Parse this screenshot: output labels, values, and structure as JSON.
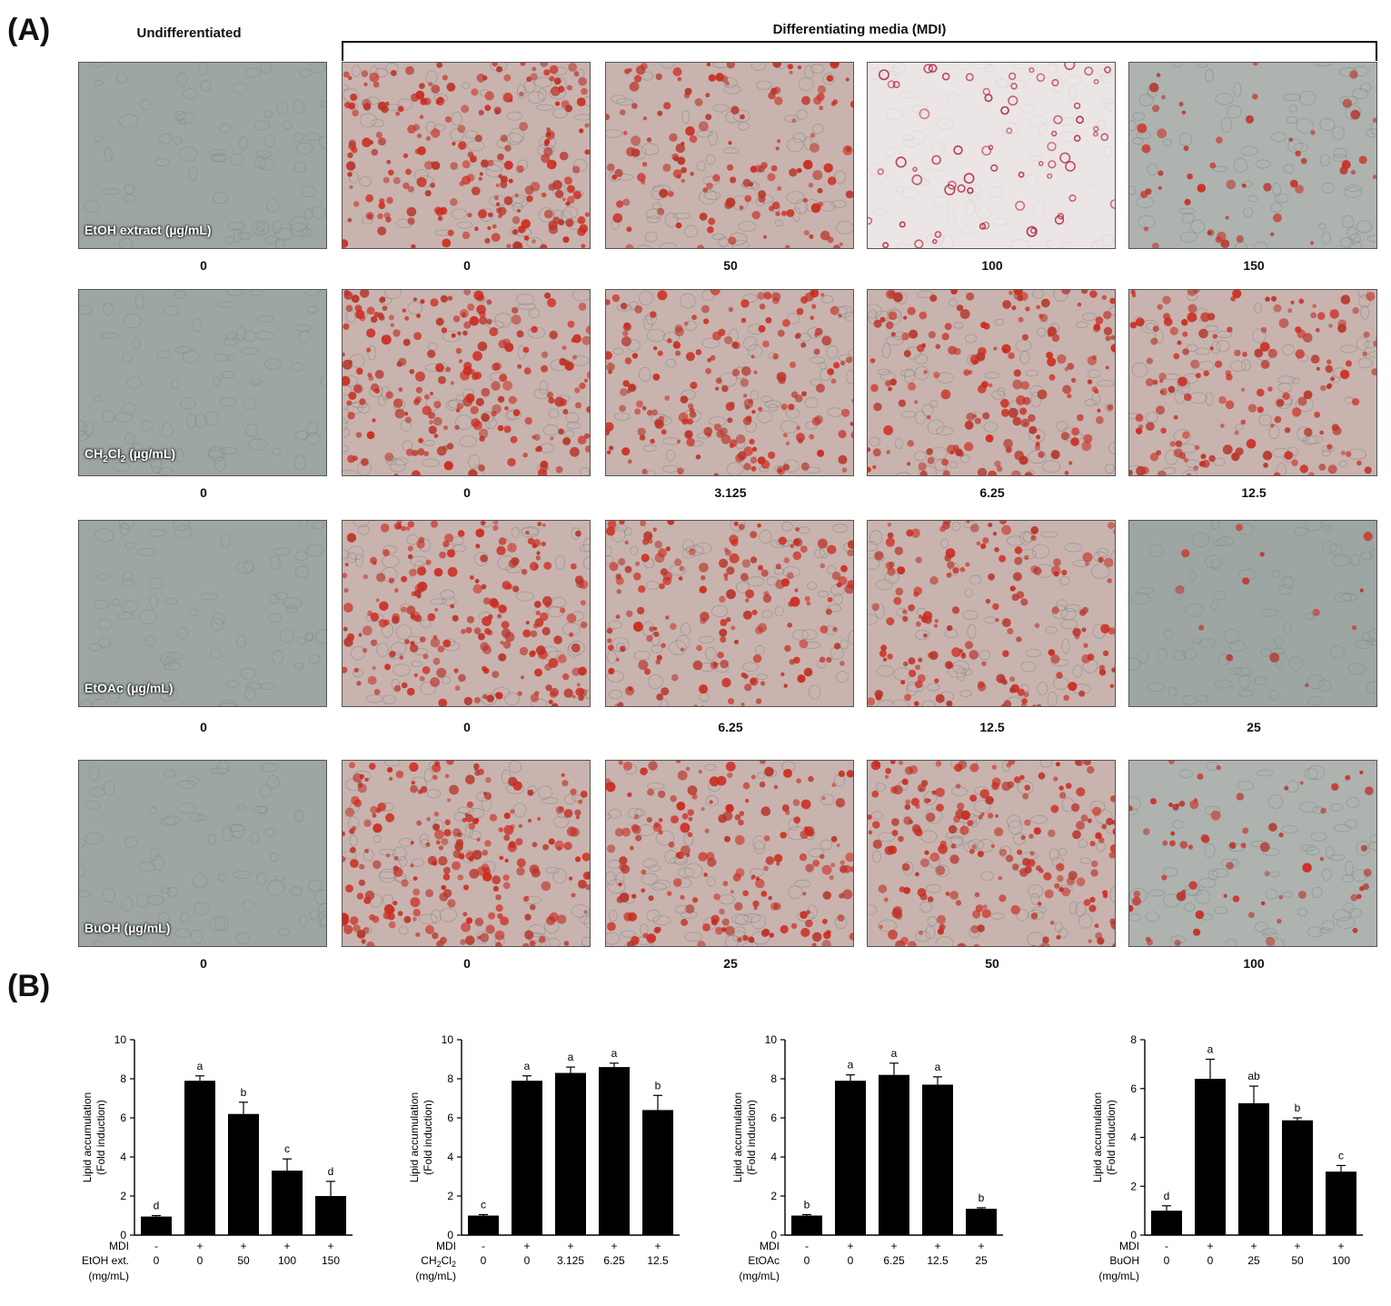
{
  "panel_a": {
    "label": "(A)",
    "header_undiff": "Undifferentiated",
    "header_mdi": "Differentiating media (MDI)",
    "rows": [
      {
        "caption": "EtOH extract (µg/mL)",
        "doses": [
          "0",
          "0",
          "50",
          "100",
          "150"
        ],
        "stain": [
          0,
          0.85,
          0.55,
          0.6,
          0.2
        ],
        "sparse": [
          false,
          false,
          false,
          true,
          false
        ]
      },
      {
        "caption": "CH2Cl2 (µg/mL)",
        "caption_parts": [
          "CH",
          "2",
          "Cl",
          "2",
          " (µg/mL)"
        ],
        "doses": [
          "0",
          "0",
          "3.125",
          "6.25",
          "12.5"
        ],
        "stain": [
          0,
          0.8,
          0.7,
          0.65,
          0.6
        ],
        "sparse": [
          false,
          false,
          false,
          false,
          false
        ]
      },
      {
        "caption": "EtOAc (µg/mL)",
        "doses": [
          "0",
          "0",
          "6.25",
          "12.5",
          "25"
        ],
        "stain": [
          0,
          0.8,
          0.65,
          0.6,
          0.05
        ],
        "sparse": [
          false,
          false,
          false,
          false,
          false
        ]
      },
      {
        "caption": "BuOH (µg/mL)",
        "doses": [
          "0",
          "0",
          "25",
          "50",
          "100"
        ],
        "stain": [
          0,
          0.85,
          0.7,
          0.75,
          0.25
        ],
        "sparse": [
          false,
          false,
          false,
          false,
          false
        ]
      }
    ]
  },
  "panel_b": {
    "label": "(B)"
  },
  "chart_data": [
    {
      "type": "bar",
      "ylabel": "Lipid accumulation (Fold induction)",
      "ylabel_lines": [
        "Lipid accumulation",
        "(Fold induction)"
      ],
      "ylim": [
        0,
        10
      ],
      "yticks": [
        0,
        2,
        4,
        6,
        8,
        10
      ],
      "row1_label": "MDI",
      "mdi": [
        "-",
        "+",
        "+",
        "+",
        "+"
      ],
      "row2_label": "EtOH ext.",
      "unit_label": "(mg/mL)",
      "categories": [
        "0",
        "0",
        "50",
        "100",
        "150"
      ],
      "values": [
        0.95,
        7.9,
        6.2,
        3.3,
        2.0
      ],
      "errors": [
        0.05,
        0.25,
        0.6,
        0.6,
        0.75
      ],
      "letters": [
        "d",
        "a",
        "b",
        "c",
        "d"
      ]
    },
    {
      "type": "bar",
      "ylabel": "Lipid accumulation (Fold induction)",
      "ylabel_lines": [
        "Lipid accumulation",
        "(Fold induction)"
      ],
      "ylim": [
        0,
        10
      ],
      "yticks": [
        0,
        2,
        4,
        6,
        8,
        10
      ],
      "row1_label": "MDI",
      "mdi": [
        "-",
        "+",
        "+",
        "+",
        "+"
      ],
      "row2_label": "CH2Cl2",
      "row2_parts": [
        "CH",
        "2",
        "Cl",
        "2"
      ],
      "unit_label": "(mg/mL)",
      "categories": [
        "0",
        "0",
        "3.125",
        "6.25",
        "12.5"
      ],
      "values": [
        1.0,
        7.9,
        8.3,
        8.6,
        6.4
      ],
      "errors": [
        0.05,
        0.25,
        0.3,
        0.2,
        0.75
      ],
      "letters": [
        "c",
        "a",
        "a",
        "a",
        "b"
      ]
    },
    {
      "type": "bar",
      "ylabel": "Lipid accumulation (Fold induction)",
      "ylabel_lines": [
        "Lipid accumulation",
        "(Fold induction)"
      ],
      "ylim": [
        0,
        10
      ],
      "yticks": [
        0,
        2,
        4,
        6,
        8,
        10
      ],
      "row1_label": "MDI",
      "mdi": [
        "-",
        "+",
        "+",
        "+",
        "+"
      ],
      "row2_label": "EtOAc",
      "unit_label": "(mg/mL)",
      "categories": [
        "0",
        "0",
        "6.25",
        "12.5",
        "25"
      ],
      "values": [
        1.0,
        7.9,
        8.2,
        7.7,
        1.35
      ],
      "errors": [
        0.05,
        0.3,
        0.6,
        0.4,
        0.05
      ],
      "letters": [
        "b",
        "a",
        "a",
        "a",
        "b"
      ]
    },
    {
      "type": "bar",
      "ylabel": "Lipid accumulation (Fold induction)",
      "ylabel_lines": [
        "Lipid accumulation",
        "(Fold induction)"
      ],
      "ylim": [
        0,
        8
      ],
      "yticks": [
        0,
        2,
        4,
        6,
        8
      ],
      "row1_label": "MDI",
      "mdi": [
        "-",
        "+",
        "+",
        "+",
        "+"
      ],
      "row2_label": "BuOH",
      "unit_label": "(mg/mL)",
      "categories": [
        "0",
        "0",
        "25",
        "50",
        "100"
      ],
      "values": [
        1.0,
        6.4,
        5.4,
        4.7,
        2.6
      ],
      "errors": [
        0.2,
        0.8,
        0.7,
        0.1,
        0.25
      ],
      "letters": [
        "d",
        "a",
        "ab",
        "b",
        "c"
      ]
    }
  ]
}
